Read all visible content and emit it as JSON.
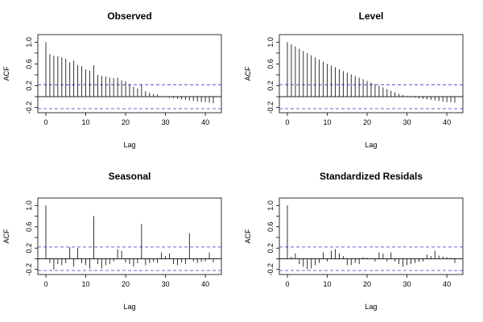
{
  "chart_data": [
    {
      "type": "bar",
      "title": "Observed",
      "xlabel": "Lag",
      "ylabel": "ACF",
      "xlim": [
        0,
        42
      ],
      "ylim": [
        -0.25,
        1.05
      ],
      "xticks": [
        0,
        10,
        20,
        30,
        40
      ],
      "yticks": [
        -0.2,
        0.2,
        0.6,
        1.0
      ],
      "yticks_minor": [
        0.0,
        0.4,
        0.8
      ],
      "confidence_band": [
        0.22,
        -0.22
      ],
      "x": [
        0,
        1,
        2,
        3,
        4,
        5,
        6,
        7,
        8,
        9,
        10,
        11,
        12,
        13,
        14,
        15,
        16,
        17,
        18,
        19,
        20,
        21,
        22,
        23,
        24,
        25,
        26,
        27,
        28,
        29,
        30,
        31,
        32,
        33,
        34,
        35,
        36,
        37,
        38,
        39,
        40,
        41,
        42
      ],
      "values": [
        1.0,
        0.78,
        0.75,
        0.74,
        0.72,
        0.7,
        0.63,
        0.66,
        0.58,
        0.56,
        0.5,
        0.48,
        0.58,
        0.4,
        0.38,
        0.37,
        0.35,
        0.34,
        0.35,
        0.3,
        0.28,
        0.23,
        0.18,
        0.15,
        0.22,
        0.1,
        0.07,
        0.05,
        0.04,
        0.01,
        -0.01,
        -0.02,
        -0.03,
        -0.04,
        -0.05,
        -0.06,
        -0.07,
        -0.08,
        -0.09,
        -0.1,
        -0.1,
        -0.11,
        -0.12
      ]
    },
    {
      "type": "bar",
      "title": "Level",
      "xlabel": "Lag",
      "ylabel": "ACF",
      "xlim": [
        0,
        42
      ],
      "ylim": [
        -0.25,
        1.05
      ],
      "xticks": [
        0,
        10,
        20,
        30,
        40
      ],
      "yticks": [
        -0.2,
        0.2,
        0.6,
        1.0
      ],
      "yticks_minor": [
        0.0,
        0.4,
        0.8
      ],
      "confidence_band": [
        0.22,
        -0.22
      ],
      "x": [
        0,
        1,
        2,
        3,
        4,
        5,
        6,
        7,
        8,
        9,
        10,
        11,
        12,
        13,
        14,
        15,
        16,
        17,
        18,
        19,
        20,
        21,
        22,
        23,
        24,
        25,
        26,
        27,
        28,
        29,
        30,
        31,
        32,
        33,
        34,
        35,
        36,
        37,
        38,
        39,
        40,
        41,
        42
      ],
      "values": [
        1.0,
        0.96,
        0.92,
        0.88,
        0.84,
        0.8,
        0.76,
        0.72,
        0.68,
        0.64,
        0.6,
        0.57,
        0.54,
        0.5,
        0.47,
        0.44,
        0.41,
        0.38,
        0.35,
        0.32,
        0.29,
        0.26,
        0.23,
        0.2,
        0.17,
        0.14,
        0.11,
        0.08,
        0.05,
        0.03,
        0.01,
        -0.01,
        -0.02,
        -0.03,
        -0.04,
        -0.05,
        -0.06,
        -0.07,
        -0.08,
        -0.09,
        -0.1,
        -0.1,
        -0.11
      ]
    },
    {
      "type": "bar",
      "title": "Seasonal",
      "xlabel": "Lag",
      "ylabel": "ACF",
      "xlim": [
        0,
        42
      ],
      "ylim": [
        -0.25,
        1.05
      ],
      "xticks": [
        0,
        10,
        20,
        30,
        40
      ],
      "yticks": [
        -0.2,
        0.2,
        0.6,
        1.0
      ],
      "yticks_minor": [
        0.0,
        0.4,
        0.8
      ],
      "confidence_band": [
        0.22,
        -0.22
      ],
      "x": [
        0,
        1,
        2,
        3,
        4,
        5,
        6,
        7,
        8,
        9,
        10,
        11,
        12,
        13,
        14,
        15,
        16,
        17,
        18,
        19,
        20,
        21,
        22,
        23,
        24,
        25,
        26,
        27,
        28,
        29,
        30,
        31,
        32,
        33,
        34,
        35,
        36,
        37,
        38,
        39,
        40,
        41,
        42
      ],
      "values": [
        1.0,
        -0.08,
        -0.2,
        -0.1,
        -0.12,
        -0.08,
        0.22,
        -0.15,
        0.2,
        -0.08,
        -0.12,
        -0.18,
        0.8,
        -0.1,
        -0.18,
        -0.12,
        -0.1,
        -0.05,
        0.18,
        0.15,
        -0.07,
        -0.1,
        -0.15,
        -0.08,
        0.65,
        -0.12,
        -0.08,
        -0.06,
        -0.08,
        0.12,
        0.05,
        0.1,
        -0.1,
        -0.12,
        -0.07,
        -0.1,
        0.48,
        -0.05,
        -0.08,
        -0.06,
        -0.05,
        0.12,
        -0.07
      ]
    },
    {
      "type": "bar",
      "title": "Standardized Residals",
      "xlabel": "Lag",
      "ylabel": "ACF",
      "xlim": [
        0,
        42
      ],
      "ylim": [
        -0.25,
        1.05
      ],
      "xticks": [
        0,
        10,
        20,
        30,
        40
      ],
      "yticks": [
        -0.2,
        0.2,
        0.6,
        1.0
      ],
      "yticks_minor": [
        0.0,
        0.4,
        0.8
      ],
      "confidence_band": [
        0.22,
        -0.22
      ],
      "x": [
        0,
        1,
        2,
        3,
        4,
        5,
        6,
        7,
        8,
        9,
        10,
        11,
        12,
        13,
        14,
        15,
        16,
        17,
        18,
        19,
        20,
        21,
        22,
        23,
        24,
        25,
        26,
        27,
        28,
        29,
        30,
        31,
        32,
        33,
        34,
        35,
        36,
        37,
        38,
        39,
        40,
        41,
        42
      ],
      "values": [
        1.0,
        0.04,
        0.1,
        -0.1,
        -0.15,
        -0.2,
        -0.18,
        -0.12,
        -0.08,
        0.12,
        -0.05,
        0.15,
        0.18,
        0.1,
        0.05,
        -0.12,
        -0.12,
        -0.08,
        -0.1,
        0.03,
        0.02,
        0.01,
        -0.05,
        0.12,
        0.1,
        -0.05,
        0.12,
        -0.05,
        -0.1,
        -0.15,
        -0.12,
        -0.1,
        -0.08,
        -0.06,
        -0.05,
        0.08,
        0.05,
        0.15,
        0.06,
        0.04,
        0.03,
        0.02,
        -0.08
      ]
    }
  ]
}
